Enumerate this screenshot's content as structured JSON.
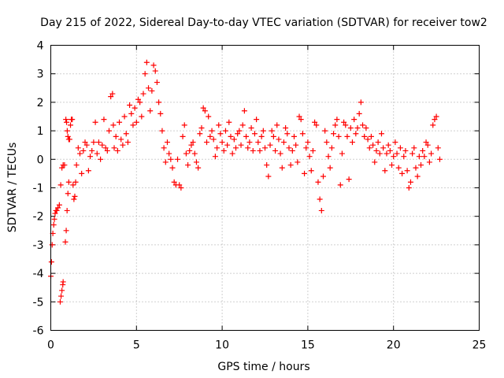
{
  "chart_data": {
    "type": "scatter",
    "title": "Day 215 of 2022, Sidereal Day-to-day VTEC variation (SDTVAR) for receiver tow2",
    "xlabel": "GPS time / hours",
    "ylabel": "SDTVAR / TECUs",
    "xlim": [
      0,
      25
    ],
    "ylim": [
      -6,
      4
    ],
    "xticks": [
      0,
      5,
      10,
      15,
      20,
      25
    ],
    "yticks": [
      -6,
      -5,
      -4,
      -3,
      -2,
      -1,
      0,
      1,
      2,
      3,
      4
    ],
    "grid": true,
    "marker": "+",
    "colors": {
      "series": "#ff0000",
      "grid": "#a0a0a0",
      "axes": "#000000"
    },
    "series": [
      {
        "name": "SDTVAR",
        "x": [
          0.0,
          0.04,
          0.08,
          0.12,
          0.17,
          0.21,
          0.25,
          0.3,
          0.35,
          0.42,
          0.5,
          0.58,
          0.65,
          0.72,
          0.8,
          0.55,
          0.6,
          0.65,
          0.7,
          0.72,
          0.85,
          0.9,
          0.95,
          1.0,
          1.05,
          1.1,
          1.15,
          1.2,
          1.25,
          0.88,
          0.92,
          0.96,
          1.0,
          1.05,
          1.3,
          1.35,
          1.4,
          1.45,
          1.5,
          1.6,
          1.7,
          1.8,
          1.9,
          2.0,
          2.1,
          2.2,
          2.3,
          2.4,
          2.5,
          2.6,
          2.7,
          2.8,
          2.9,
          3.0,
          3.1,
          3.2,
          3.3,
          3.4,
          3.5,
          3.6,
          3.65,
          3.7,
          3.8,
          3.9,
          4.0,
          4.1,
          4.2,
          4.3,
          4.4,
          4.5,
          4.6,
          4.7,
          4.8,
          4.9,
          5.0,
          5.1,
          5.2,
          5.3,
          5.4,
          5.5,
          5.6,
          5.7,
          5.8,
          5.9,
          6.0,
          6.1,
          6.2,
          6.3,
          6.4,
          6.5,
          6.6,
          6.7,
          6.8,
          6.9,
          7.0,
          7.1,
          7.2,
          7.3,
          7.4,
          7.5,
          7.6,
          7.7,
          7.8,
          7.9,
          8.0,
          8.1,
          8.2,
          8.3,
          8.4,
          8.5,
          8.6,
          8.7,
          8.8,
          8.9,
          9.0,
          9.1,
          9.2,
          9.3,
          9.4,
          9.5,
          9.6,
          9.7,
          9.8,
          9.9,
          10.0,
          10.1,
          10.2,
          10.3,
          10.4,
          10.5,
          10.6,
          10.7,
          10.8,
          10.9,
          11.0,
          11.1,
          11.2,
          11.3,
          11.4,
          11.5,
          11.6,
          11.7,
          11.8,
          11.9,
          12.0,
          12.1,
          12.2,
          12.3,
          12.4,
          12.5,
          12.6,
          12.7,
          12.8,
          12.9,
          13.0,
          13.1,
          13.2,
          13.3,
          13.4,
          13.5,
          13.6,
          13.7,
          13.8,
          13.9,
          14.0,
          14.1,
          14.2,
          14.3,
          14.4,
          14.5,
          14.6,
          14.7,
          14.8,
          14.9,
          15.0,
          15.1,
          15.2,
          15.3,
          15.4,
          15.5,
          15.6,
          15.7,
          15.8,
          15.9,
          16.0,
          16.1,
          16.2,
          16.3,
          16.4,
          16.5,
          16.6,
          16.7,
          16.8,
          16.9,
          17.0,
          17.1,
          17.2,
          17.3,
          17.4,
          17.5,
          17.6,
          17.7,
          17.8,
          17.9,
          18.0,
          18.1,
          18.2,
          18.3,
          18.4,
          18.5,
          18.6,
          18.7,
          18.8,
          18.9,
          19.0,
          19.1,
          19.2,
          19.3,
          19.4,
          19.5,
          19.6,
          19.7,
          19.8,
          19.9,
          20.0,
          20.1,
          20.2,
          20.3,
          20.4,
          20.5,
          20.6,
          20.7,
          20.8,
          20.9,
          21.0,
          21.1,
          21.2,
          21.3,
          21.4,
          21.5,
          21.6,
          21.7,
          21.8,
          21.9,
          22.0,
          22.1,
          22.2,
          22.3,
          22.4,
          22.5,
          22.6,
          22.7
        ],
        "y": [
          -4.1,
          -3.6,
          -3.0,
          -2.6,
          -2.3,
          -2.1,
          -1.9,
          -1.8,
          -1.8,
          -1.7,
          -1.6,
          -0.9,
          -0.3,
          -0.2,
          -0.2,
          -5.0,
          -4.8,
          -4.6,
          -4.4,
          -4.3,
          -2.9,
          -2.5,
          -1.8,
          -1.2,
          -0.8,
          0.7,
          1.2,
          1.4,
          1.4,
          1.4,
          1.3,
          1.0,
          0.8,
          0.7,
          -0.9,
          -1.4,
          -1.3,
          -0.8,
          -0.2,
          0.4,
          0.2,
          -0.5,
          0.3,
          0.6,
          0.5,
          -0.4,
          0.1,
          0.3,
          0.6,
          1.3,
          0.2,
          0.6,
          0.0,
          0.5,
          1.4,
          0.4,
          0.3,
          1.0,
          2.2,
          2.3,
          1.2,
          0.4,
          0.8,
          0.3,
          1.3,
          0.7,
          0.5,
          1.5,
          0.9,
          0.6,
          1.9,
          1.6,
          1.2,
          1.8,
          1.3,
          2.1,
          2.0,
          1.5,
          2.3,
          3.0,
          3.4,
          2.5,
          1.7,
          2.4,
          3.3,
          3.1,
          2.7,
          2.0,
          1.6,
          1.0,
          0.4,
          -0.1,
          0.6,
          0.2,
          0.0,
          -0.3,
          -0.8,
          -0.9,
          0.0,
          -0.9,
          -1.0,
          0.8,
          1.2,
          0.2,
          -0.2,
          0.3,
          0.5,
          0.6,
          0.2,
          -0.1,
          -0.3,
          0.9,
          1.1,
          1.8,
          1.7,
          0.6,
          1.5,
          0.8,
          1.0,
          0.7,
          0.1,
          0.4,
          1.2,
          0.9,
          0.6,
          0.3,
          1.0,
          0.5,
          1.3,
          0.8,
          0.2,
          0.7,
          0.4,
          0.9,
          1.0,
          0.5,
          1.2,
          1.7,
          0.8,
          0.4,
          0.6,
          1.1,
          0.3,
          0.9,
          1.4,
          0.6,
          0.3,
          0.8,
          1.0,
          0.4,
          -0.2,
          -0.6,
          0.5,
          1.0,
          0.8,
          0.3,
          1.2,
          0.7,
          0.2,
          -0.3,
          0.6,
          1.1,
          0.9,
          0.4,
          -0.2,
          0.3,
          0.8,
          0.5,
          -0.1,
          1.5,
          1.4,
          0.9,
          -0.5,
          0.4,
          0.6,
          0.1,
          -0.4,
          0.3,
          1.3,
          1.2,
          -0.8,
          -1.4,
          -1.8,
          -0.6,
          1.0,
          0.6,
          0.1,
          -0.3,
          0.4,
          0.9,
          1.2,
          1.4,
          0.8,
          -0.9,
          0.2,
          1.3,
          1.2,
          0.8,
          -0.7,
          1.1,
          0.6,
          1.4,
          0.9,
          1.1,
          1.6,
          2.0,
          1.2,
          0.8,
          1.1,
          0.7,
          0.4,
          0.8,
          0.5,
          -0.1,
          0.3,
          0.6,
          0.2,
          0.9,
          0.4,
          -0.4,
          0.2,
          0.5,
          0.3,
          -0.2,
          0.1,
          0.6,
          0.2,
          -0.3,
          0.4,
          -0.5,
          0.1,
          0.3,
          -0.4,
          -1.0,
          -0.8,
          0.2,
          0.4,
          -0.3,
          -0.6,
          0.1,
          -0.2,
          0.3,
          0.1,
          0.6,
          0.5,
          -0.1,
          0.2,
          1.2,
          1.4,
          1.5,
          0.4,
          0.0
        ]
      }
    ]
  }
}
